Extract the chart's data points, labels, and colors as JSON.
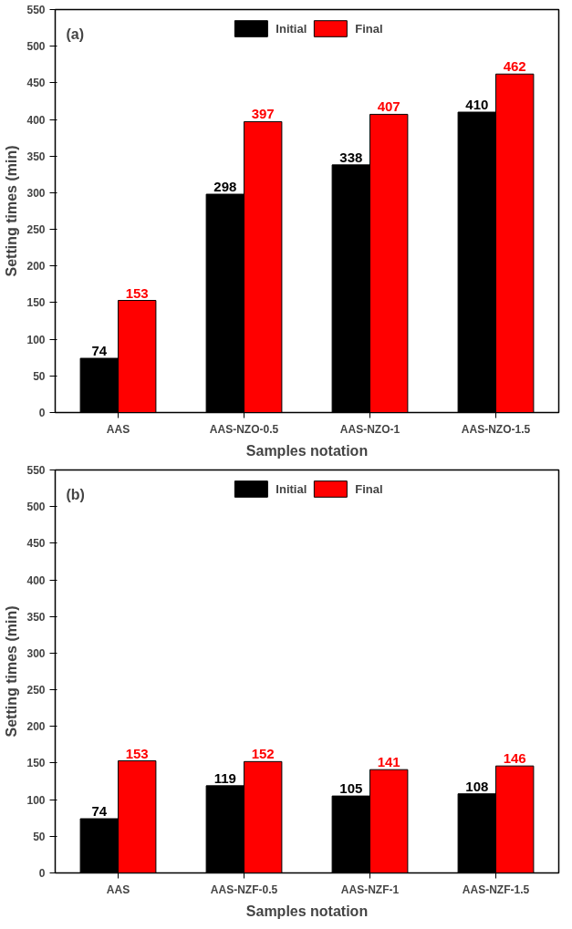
{
  "chart_data": [
    {
      "type": "bar",
      "xlabel": "Samples notation",
      "ylabel": "Setting times (min)",
      "annotations": [
        "(a)"
      ],
      "categories": [
        "AAS",
        "AAS-NZO-0.5",
        "AAS-NZO-1",
        "AAS-NZO-1.5"
      ],
      "series": [
        {
          "name": "Initial",
          "color": "#000000",
          "values": [
            74,
            298,
            338,
            410
          ]
        },
        {
          "name": "Final",
          "color": "#ff0000",
          "values": [
            153,
            397,
            407,
            462
          ]
        }
      ],
      "ylim": [
        0,
        550
      ],
      "yticks": [
        0,
        50,
        100,
        150,
        200,
        250,
        300,
        350,
        400,
        450,
        500,
        550
      ],
      "data_labels": true,
      "legend": "top",
      "grid": false
    },
    {
      "type": "bar",
      "xlabel": "Samples notation",
      "ylabel": "Setting times (min)",
      "annotations": [
        "(b)"
      ],
      "categories": [
        "AAS",
        "AAS-NZF-0.5",
        "AAS-NZF-1",
        "AAS-NZF-1.5"
      ],
      "series": [
        {
          "name": "Initial",
          "color": "#000000",
          "values": [
            74,
            119,
            105,
            108
          ]
        },
        {
          "name": "Final",
          "color": "#ff0000",
          "values": [
            153,
            152,
            141,
            146
          ]
        }
      ],
      "ylim": [
        0,
        550
      ],
      "yticks": [
        0,
        50,
        100,
        150,
        200,
        250,
        300,
        350,
        400,
        450,
        500,
        550
      ],
      "data_labels": true,
      "legend": "top",
      "grid": false
    }
  ]
}
